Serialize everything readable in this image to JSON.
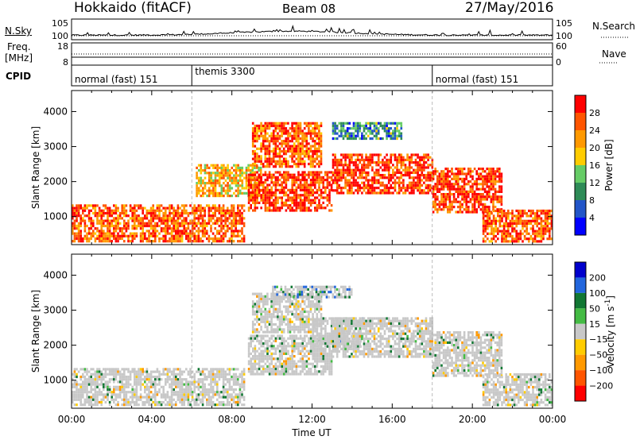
{
  "header": {
    "title": "Hokkaido (fitACF)",
    "beam": "Beam 08",
    "date": "27/May/2016"
  },
  "strips": {
    "nsky": {
      "label": "N.Sky",
      "ticks": [
        "10^5",
        "10^0"
      ],
      "right_ticks": [
        "10^5",
        "10^0"
      ],
      "right_label": "N.Search"
    },
    "freq": {
      "label_line1": "Freq.",
      "label_line2": "[MHz]",
      "ticks": [
        "18",
        "8"
      ],
      "right_ticks": [
        "60",
        "0"
      ],
      "right_label": "Nave"
    },
    "cpid": {
      "label": "CPID",
      "segments": [
        {
          "start": "00:00",
          "end": "06:00",
          "label": "normal (fast) 151"
        },
        {
          "start": "06:00",
          "end": "18:00",
          "label": "themis 3300"
        },
        {
          "start": "18:00",
          "end": "24:00",
          "label": "normal (fast) 151"
        }
      ]
    }
  },
  "colors": {
    "power_scale": [
      "#0000ff",
      "#2255c8",
      "#2e8b57",
      "#66cc66",
      "#ffcc00",
      "#ff9900",
      "#ff5500",
      "#ff0000"
    ],
    "velocity_scale": [
      "#0000cc",
      "#2266dd",
      "#117733",
      "#44bb44",
      "#c8c8c8",
      "#ffcc00",
      "#ff9900",
      "#ff5500",
      "#ff0000"
    ],
    "ground_scatter": "#c8c8c8"
  },
  "chart_data": [
    {
      "type": "heatmap",
      "quantity": "Power",
      "ylabel": "Slant Range [km]",
      "yticks": [
        1000,
        2000,
        3000,
        4000
      ],
      "ylim": [
        200,
        4600
      ],
      "xlim_hours": [
        0,
        24
      ],
      "colorbar": {
        "label": "Power [dB]",
        "ticks": [
          4,
          8,
          12,
          16,
          20,
          24,
          28
        ],
        "range": [
          0,
          32
        ]
      },
      "echo_bands": [
        {
          "start_h": 0.0,
          "end_h": 8.6,
          "low_km": 300,
          "high_km": 1350,
          "dominant_dB": 26
        },
        {
          "start_h": 6.2,
          "end_h": 9.5,
          "low_km": 1600,
          "high_km": 2500,
          "dominant_dB": 20
        },
        {
          "start_h": 8.8,
          "end_h": 13.0,
          "low_km": 1200,
          "high_km": 2300,
          "dominant_dB": 28
        },
        {
          "start_h": 9.0,
          "end_h": 12.5,
          "low_km": 2400,
          "high_km": 3700,
          "dominant_dB": 26
        },
        {
          "start_h": 13.0,
          "end_h": 18.0,
          "low_km": 1700,
          "high_km": 2800,
          "dominant_dB": 28
        },
        {
          "start_h": 18.0,
          "end_h": 21.5,
          "low_km": 1100,
          "high_km": 2400,
          "dominant_dB": 28
        },
        {
          "start_h": 20.5,
          "end_h": 24.0,
          "low_km": 300,
          "high_km": 1200,
          "dominant_dB": 26
        },
        {
          "start_h": 13.0,
          "end_h": 16.5,
          "low_km": 3200,
          "high_km": 3700,
          "dominant_dB": 10
        }
      ]
    },
    {
      "type": "heatmap",
      "quantity": "Velocity",
      "ylabel": "Slant Range [km]",
      "xlabel": "Time UT",
      "xticks": [
        "00:00",
        "04:00",
        "08:00",
        "12:00",
        "16:00",
        "20:00",
        "00:00"
      ],
      "yticks": [
        1000,
        2000,
        3000,
        4000
      ],
      "ylim": [
        200,
        4600
      ],
      "xlim_hours": [
        0,
        24
      ],
      "colorbar": {
        "label": "Velocity [m s^-1]",
        "ticks": [
          "200",
          "100",
          "50",
          "15",
          "-15",
          "-50",
          "-100",
          "-200"
        ]
      },
      "echo_bands": [
        {
          "start_h": 0.0,
          "end_h": 8.6,
          "low_km": 300,
          "high_km": 1350,
          "dominant_ms": 0
        },
        {
          "start_h": 8.8,
          "end_h": 13.0,
          "low_km": 1200,
          "high_km": 2300,
          "dominant_ms": 0
        },
        {
          "start_h": 9.0,
          "end_h": 12.5,
          "low_km": 2400,
          "high_km": 3500,
          "dominant_ms": 0
        },
        {
          "start_h": 12.0,
          "end_h": 14.5,
          "low_km": 1900,
          "high_km": 2800,
          "dominant_ms": 40
        },
        {
          "start_h": 13.0,
          "end_h": 18.0,
          "low_km": 1700,
          "high_km": 2800,
          "dominant_ms": 0
        },
        {
          "start_h": 18.0,
          "end_h": 21.5,
          "low_km": 1100,
          "high_km": 2400,
          "dominant_ms": 0
        },
        {
          "start_h": 20.5,
          "end_h": 24.0,
          "low_km": 300,
          "high_km": 1200,
          "dominant_ms": 0
        },
        {
          "start_h": 10.0,
          "end_h": 14.0,
          "low_km": 3400,
          "high_km": 3700,
          "dominant_ms": 80
        }
      ]
    }
  ]
}
